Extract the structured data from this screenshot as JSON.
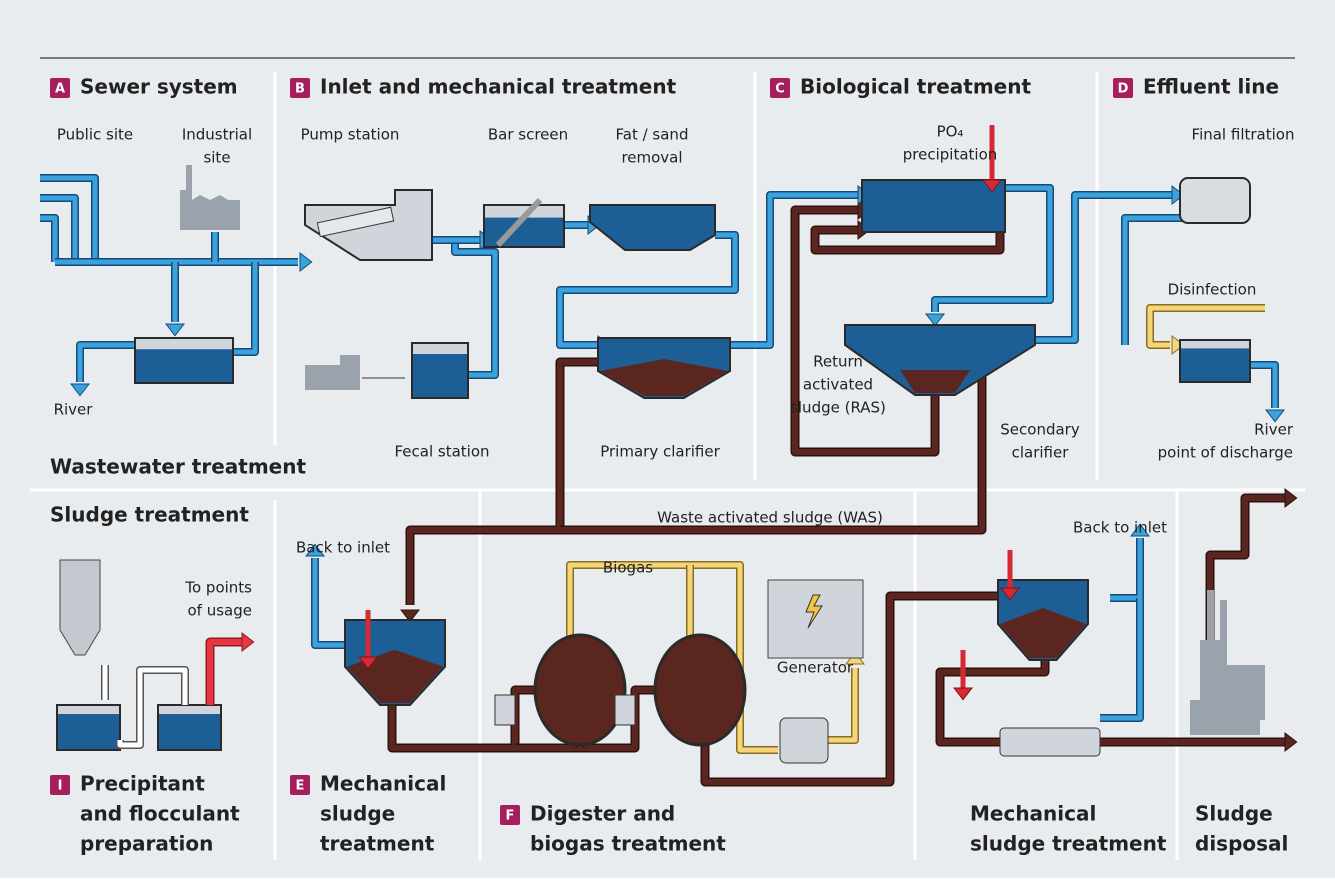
{
  "sections": [
    {
      "badge": "A",
      "title": [
        "Sewer system"
      ]
    },
    {
      "badge": "B",
      "title": [
        "Inlet and mechanical treatment"
      ]
    },
    {
      "badge": "C",
      "title": [
        "Biological treatment"
      ]
    },
    {
      "badge": "D",
      "title": [
        "Effluent line"
      ]
    },
    {
      "badge": "I",
      "title": [
        "Precipitant",
        "and flocculant",
        "preparation"
      ]
    },
    {
      "badge": "E",
      "title": [
        "Mechanical",
        "sludge",
        "treatment"
      ]
    },
    {
      "badge": "F",
      "title": [
        "Digester and",
        "biogas treatment"
      ]
    },
    {
      "title": [
        "Mechanical",
        "sludge treatment"
      ]
    },
    {
      "title": [
        "Sludge",
        "disposal"
      ]
    }
  ],
  "groups": [
    "Wastewater treatment",
    "Sludge treatment"
  ],
  "labels": {
    "public_site": [
      "Public site"
    ],
    "industrial_site": [
      "Industrial",
      "site"
    ],
    "river": [
      "River"
    ],
    "pump_station": [
      "Pump station"
    ],
    "bar_screen": [
      "Bar screen"
    ],
    "fat_sand": [
      "Fat / sand",
      "removal"
    ],
    "fecal_station": [
      "Fecal station"
    ],
    "primary_clarifier": [
      "Primary clarifier"
    ],
    "po4": [
      "PO₄",
      "precipitation"
    ],
    "ras": [
      "Return",
      "activated",
      "sludge (RAS)"
    ],
    "secondary_clarifier": [
      "Secondary",
      "clarifier"
    ],
    "final_filtration": [
      "Final filtration"
    ],
    "disinfection": [
      "Disinfection"
    ],
    "river_discharge": [
      "River",
      "point of discharge"
    ],
    "was": [
      "Waste activated sludge (WAS)"
    ],
    "back_inlet_1": [
      "Back to inlet"
    ],
    "back_inlet_2": [
      "Back to inlet"
    ],
    "points_usage": [
      "To points",
      "of usage"
    ],
    "biogas": [
      "Biogas"
    ],
    "generator": [
      "Generator"
    ]
  }
}
